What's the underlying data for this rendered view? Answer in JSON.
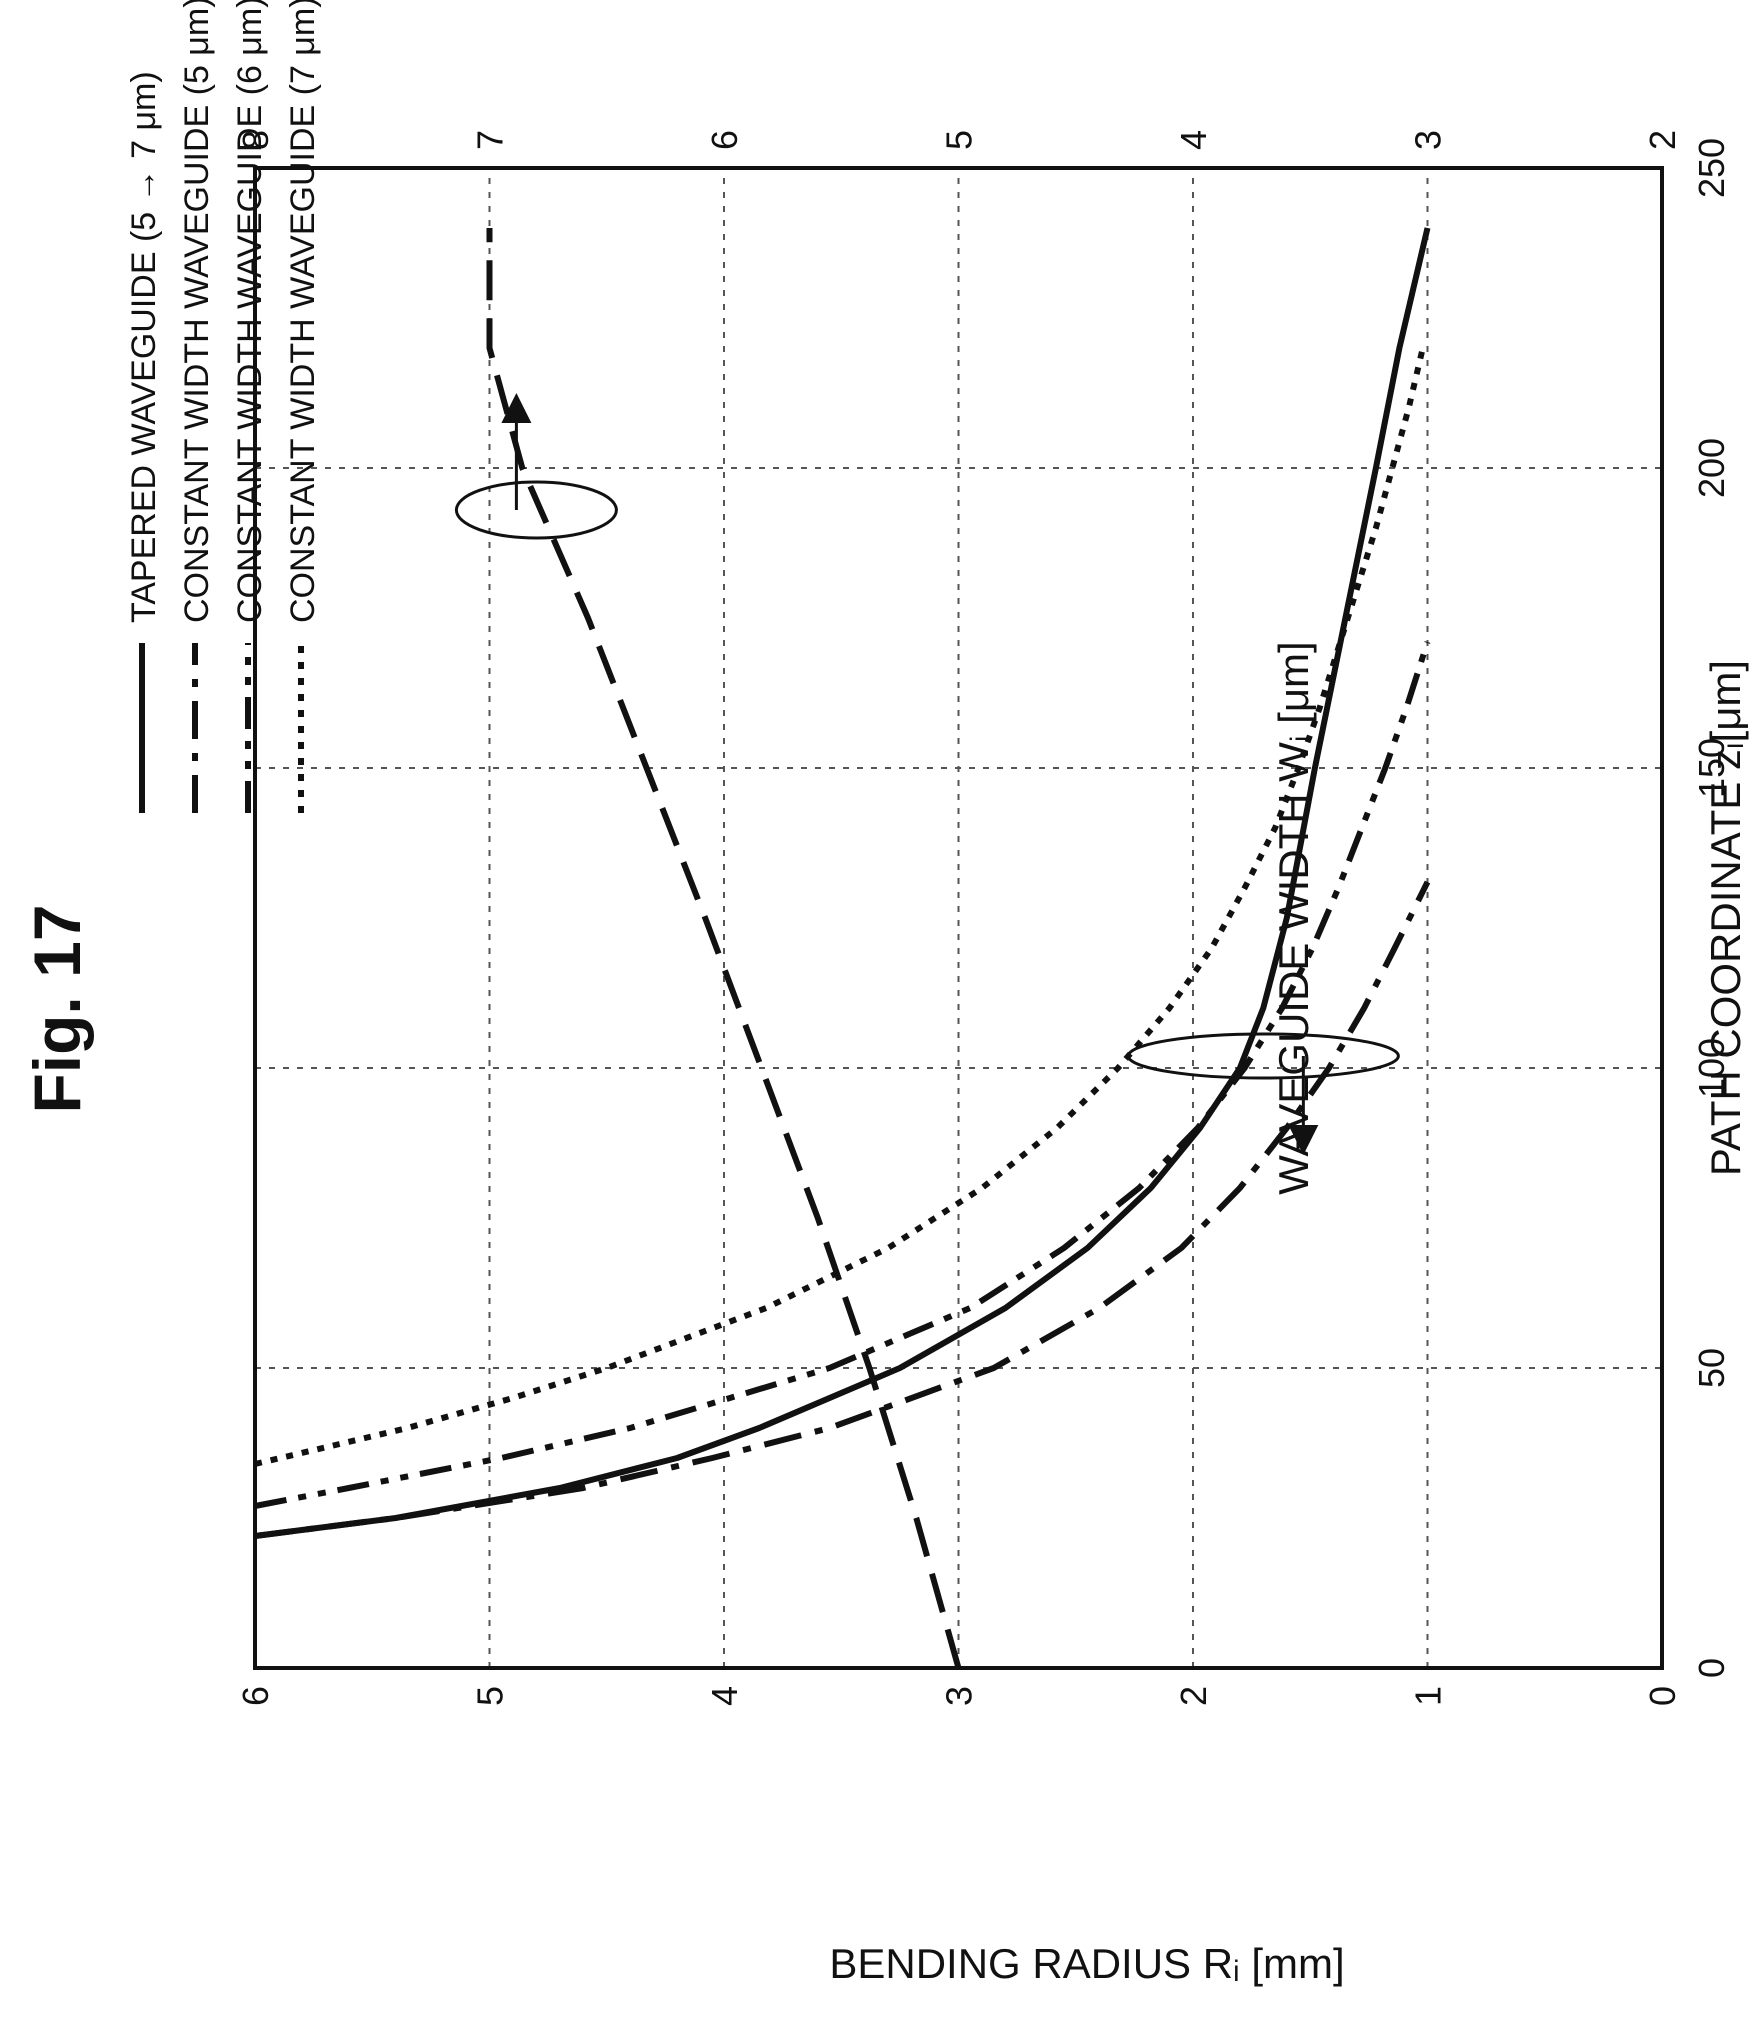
{
  "figure_label": "Fig. 17",
  "chart_data": {
    "type": "line",
    "title": "",
    "xlabel": "PATH COORDINATE zᵢ[μm]",
    "ylabel_left": "BENDING RADIUS Rᵢ [mm]",
    "ylabel_right": "WAVEGUIDE WIDTH Wᵢ [μm]",
    "xlim": [
      0,
      250
    ],
    "ylim_left": [
      0,
      6
    ],
    "ylim_right": [
      2,
      8
    ],
    "x_ticks": [
      "0",
      "50",
      "100",
      "150",
      "200",
      "250"
    ],
    "y_left_ticks": [
      "0",
      "1",
      "2",
      "3",
      "4",
      "5",
      "6"
    ],
    "y_right_ticks": [
      "2",
      "3",
      "4",
      "5",
      "6",
      "7",
      "8"
    ],
    "grid": true,
    "legend_position": "top",
    "legend": [
      {
        "label": "TAPERED WAVEGUIDE (5 → 7 μm)",
        "style": "solid"
      },
      {
        "label": "CONSTANT WIDTH WAVEGUIDE (5 μm)",
        "style": "dash-dot"
      },
      {
        "label": "CONSTANT WIDTH WAVEGUIDE (6 μm)",
        "style": "dash-dot-dot"
      },
      {
        "label": "CONSTANT WIDTH WAVEGUIDE (7 μm)",
        "style": "dotted"
      }
    ],
    "series": [
      {
        "axis": "left",
        "style": "solid",
        "x": [
          22,
          25,
          30,
          35,
          40,
          50,
          60,
          70,
          80,
          90,
          100,
          110,
          125,
          150,
          175,
          200,
          220,
          240
        ],
        "y": [
          6.0,
          5.4,
          4.7,
          4.2,
          3.85,
          3.25,
          2.8,
          2.45,
          2.18,
          1.97,
          1.8,
          1.7,
          1.6,
          1.48,
          1.35,
          1.22,
          1.12,
          1.0
        ]
      },
      {
        "axis": "left",
        "style": "dash-dot",
        "x": [
          22,
          25,
          30,
          35,
          40,
          50,
          60,
          70,
          80,
          90,
          100,
          110,
          120,
          131
        ],
        "y": [
          6.0,
          5.4,
          4.6,
          4.05,
          3.55,
          2.85,
          2.4,
          2.05,
          1.8,
          1.6,
          1.42,
          1.27,
          1.14,
          1.0
        ]
      },
      {
        "axis": "left",
        "style": "dash-dot-dot",
        "x": [
          27,
          30,
          35,
          40,
          50,
          60,
          70,
          80,
          90,
          100,
          110,
          120,
          130,
          140,
          150,
          160,
          171
        ],
        "y": [
          6.0,
          5.6,
          4.95,
          4.4,
          3.55,
          2.95,
          2.55,
          2.23,
          1.98,
          1.78,
          1.62,
          1.49,
          1.38,
          1.28,
          1.18,
          1.09,
          1.0
        ]
      },
      {
        "axis": "left",
        "style": "dotted",
        "x": [
          34,
          40,
          45,
          50,
          60,
          70,
          80,
          90,
          100,
          110,
          120,
          130,
          140,
          150,
          160,
          175,
          190,
          200,
          210,
          220
        ],
        "y": [
          6.0,
          5.35,
          4.9,
          4.5,
          3.82,
          3.3,
          2.9,
          2.58,
          2.32,
          2.1,
          1.92,
          1.78,
          1.65,
          1.55,
          1.46,
          1.34,
          1.22,
          1.15,
          1.08,
          1.02
        ]
      },
      {
        "axis": "right",
        "style": "long-dash",
        "x": [
          0,
          25,
          50,
          75,
          100,
          125,
          150,
          175,
          200,
          220,
          240
        ],
        "y": [
          5.0,
          5.18,
          5.38,
          5.6,
          5.84,
          6.08,
          6.33,
          6.58,
          6.86,
          7.0,
          7.0
        ]
      }
    ],
    "annotations": [
      {
        "text": "",
        "arrow": "toward right axis",
        "group": "waveguide width curve"
      },
      {
        "text": "",
        "arrow": "toward left axis",
        "group": "bending radius curves"
      }
    ]
  }
}
